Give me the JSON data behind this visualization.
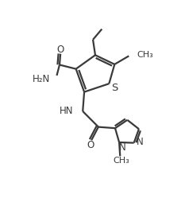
{
  "background_color": "#ffffff",
  "line_color": "#3a3a3a",
  "line_width": 1.6,
  "font_size": 8.5,
  "xlim": [
    0,
    10
  ],
  "ylim": [
    0,
    11
  ]
}
